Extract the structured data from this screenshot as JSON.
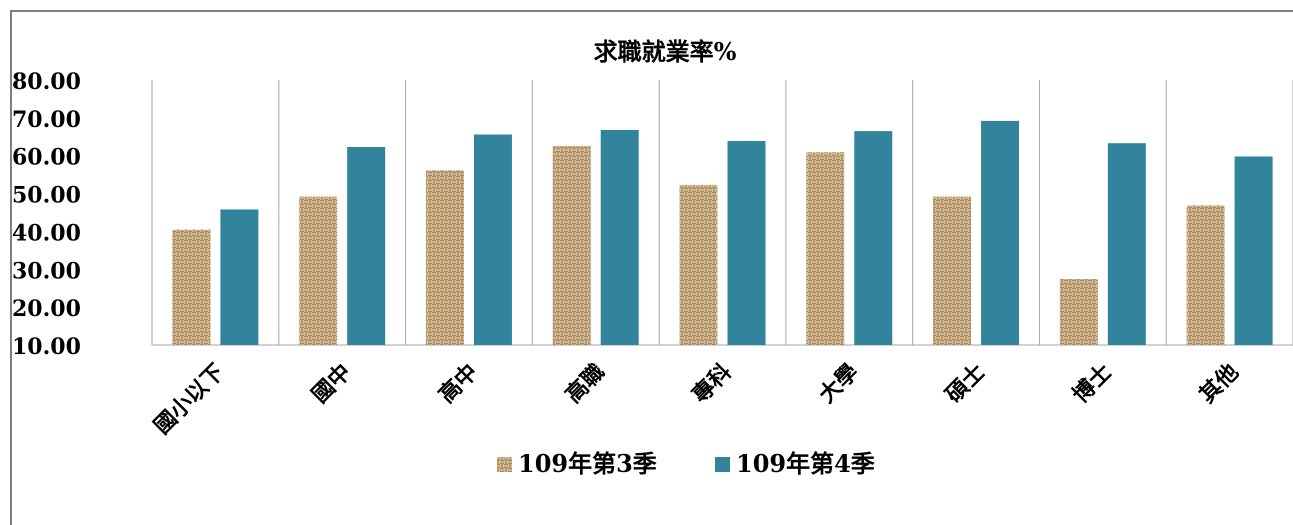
{
  "chart_data": {
    "type": "bar",
    "title": "求職就業率%",
    "xlabel": "",
    "ylabel": "",
    "ylim": [
      10,
      80
    ],
    "yticks": [
      "10.00",
      "20.00",
      "30.00",
      "40.00",
      "50.00",
      "60.00",
      "70.00",
      "80.00"
    ],
    "categories": [
      "國小以下",
      "國中",
      "高中",
      "高職",
      "專科",
      "大學",
      "碩士",
      "博士",
      "其他"
    ],
    "series": [
      {
        "name": "109年第3季",
        "values": [
          40.5,
          49.2,
          56.1,
          62.6,
          52.3,
          60.9,
          49.2,
          27.4,
          46.9
        ],
        "pattern": "woven-burlap",
        "color": "#c9a77b"
      },
      {
        "name": "109年第4季",
        "values": [
          45.8,
          62.3,
          65.6,
          66.8,
          63.9,
          66.5,
          69.2,
          63.3,
          59.8
        ],
        "color": "#31849b"
      }
    ],
    "legend": "bottom",
    "grid": "vertical category separators"
  }
}
